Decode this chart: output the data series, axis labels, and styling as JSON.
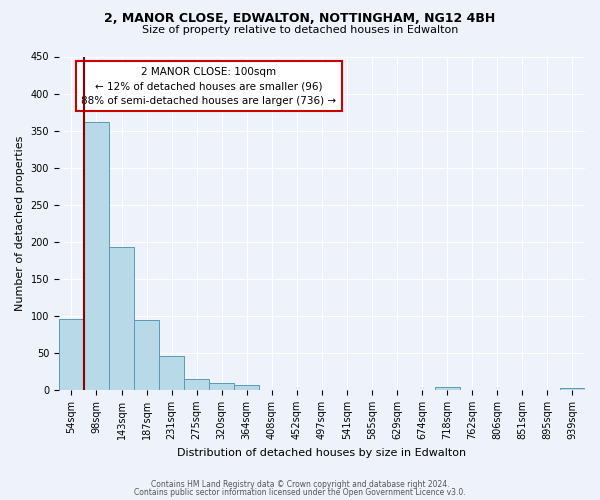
{
  "title1": "2, MANOR CLOSE, EDWALTON, NOTTINGHAM, NG12 4BH",
  "title2": "Size of property relative to detached houses in Edwalton",
  "xlabel": "Distribution of detached houses by size in Edwalton",
  "ylabel": "Number of detached properties",
  "bin_labels": [
    "54sqm",
    "98sqm",
    "143sqm",
    "187sqm",
    "231sqm",
    "275sqm",
    "320sqm",
    "364sqm",
    "408sqm",
    "452sqm",
    "497sqm",
    "541sqm",
    "585sqm",
    "629sqm",
    "674sqm",
    "718sqm",
    "762sqm",
    "806sqm",
    "851sqm",
    "895sqm",
    "939sqm"
  ],
  "bar_heights": [
    96,
    362,
    193,
    94,
    46,
    15,
    10,
    6,
    0,
    0,
    0,
    0,
    0,
    0,
    0,
    4,
    0,
    0,
    0,
    0,
    2
  ],
  "bar_color": "#b8d9e8",
  "bar_edge_color": "#5a9ab5",
  "vline_color": "#8b0000",
  "annotation_title": "2 MANOR CLOSE: 100sqm",
  "annotation_line1": "← 12% of detached houses are smaller (96)",
  "annotation_line2": "88% of semi-detached houses are larger (736) →",
  "annotation_box_facecolor": "#ffffff",
  "annotation_box_edgecolor": "#cc0000",
  "ylim": [
    0,
    450
  ],
  "yticks": [
    0,
    50,
    100,
    150,
    200,
    250,
    300,
    350,
    400,
    450
  ],
  "footer1": "Contains HM Land Registry data © Crown copyright and database right 2024.",
  "footer2": "Contains public sector information licensed under the Open Government Licence v3.0.",
  "background_color": "#eef2fb",
  "grid_color": "#ffffff",
  "title_fontsize": 9,
  "subtitle_fontsize": 8,
  "tick_fontsize": 7,
  "ylabel_fontsize": 8,
  "xlabel_fontsize": 8
}
